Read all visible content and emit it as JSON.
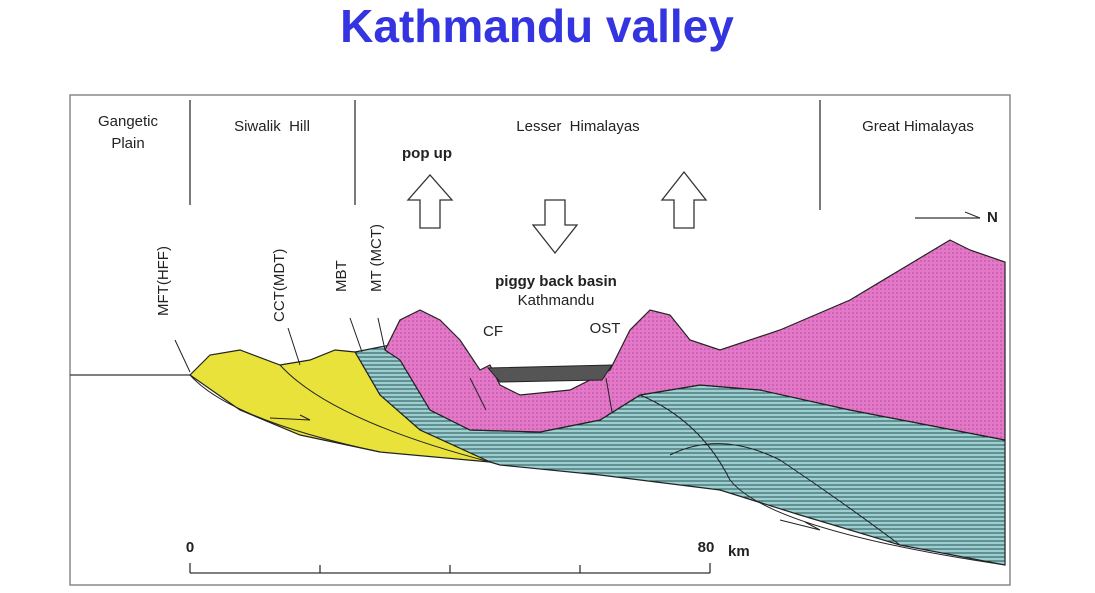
{
  "title": "Kathmandu valley",
  "regions": [
    {
      "lines": [
        "Gangetic",
        "Plain"
      ]
    },
    {
      "lines": [
        "Siwalik  Hill"
      ]
    },
    {
      "lines": [
        "Lesser  Himalayas"
      ]
    },
    {
      "lines": [
        "Great Himalayas"
      ]
    }
  ],
  "annotations": {
    "pop_up": "pop up",
    "piggy_back_basin": "piggy back basin",
    "kathmandu": "Kathmandu",
    "cf": "CF",
    "ost": "OST",
    "north": "N"
  },
  "faults": [
    "MFT(HFF)",
    "CCT(MDT)",
    "MBT",
    "MT (MCT)"
  ],
  "scale": {
    "start": "0",
    "end": "80",
    "unit": "km"
  }
}
